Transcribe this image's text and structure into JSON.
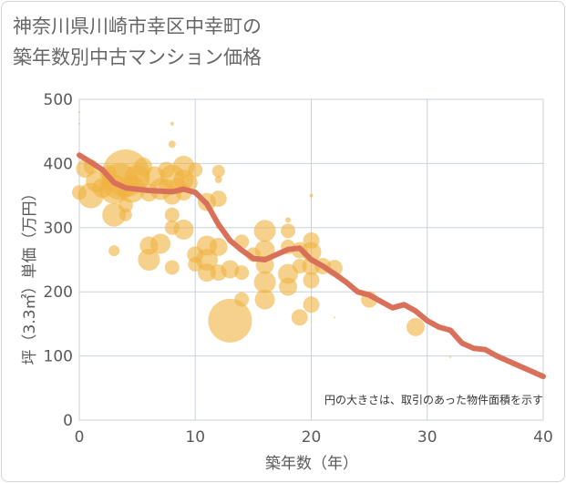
{
  "title_line1": "神奈川県川崎市幸区中幸町の",
  "title_line2": "築年数別中古マンション価格",
  "note": "円の大きさは、取引のあった物件面積を示す",
  "colors": {
    "bubble": "#f0b240",
    "line": "#d9705a",
    "grid": "#c8d2dc",
    "text": "#5a5a5a"
  },
  "chart_data": {
    "type": "scatter",
    "xlabel": "築年数（年）",
    "ylabel": "坪（3.3㎡）単価（万円）",
    "xlim": [
      0,
      40
    ],
    "ylim": [
      0,
      500
    ],
    "x_ticks": [
      "0",
      "10",
      "20",
      "30",
      "40"
    ],
    "y_ticks": [
      "0",
      "100",
      "200",
      "300",
      "400",
      "500"
    ],
    "grid": true,
    "bubbles": [
      {
        "x": 0,
        "y": 480,
        "s": 1
      },
      {
        "x": 0,
        "y": 462,
        "s": 1
      },
      {
        "x": 0,
        "y": 355,
        "s": 8
      },
      {
        "x": 0.5,
        "y": 392,
        "s": 10
      },
      {
        "x": 1,
        "y": 350,
        "s": 14
      },
      {
        "x": 1,
        "y": 395,
        "s": 8
      },
      {
        "x": 1.5,
        "y": 372,
        "s": 12
      },
      {
        "x": 2,
        "y": 362,
        "s": 11
      },
      {
        "x": 2.5,
        "y": 385,
        "s": 9
      },
      {
        "x": 3,
        "y": 320,
        "s": 13
      },
      {
        "x": 3,
        "y": 360,
        "s": 16
      },
      {
        "x": 3,
        "y": 264,
        "s": 6
      },
      {
        "x": 3.5,
        "y": 372,
        "s": 20
      },
      {
        "x": 4,
        "y": 385,
        "s": 26
      },
      {
        "x": 4,
        "y": 335,
        "s": 8
      },
      {
        "x": 4,
        "y": 320,
        "s": 7
      },
      {
        "x": 4.5,
        "y": 360,
        "s": 15
      },
      {
        "x": 5,
        "y": 378,
        "s": 14
      },
      {
        "x": 5.5,
        "y": 395,
        "s": 10
      },
      {
        "x": 6,
        "y": 355,
        "s": 10
      },
      {
        "x": 6,
        "y": 250,
        "s": 12
      },
      {
        "x": 6,
        "y": 272,
        "s": 10
      },
      {
        "x": 6.5,
        "y": 380,
        "s": 11
      },
      {
        "x": 7,
        "y": 360,
        "s": 12
      },
      {
        "x": 7,
        "y": 275,
        "s": 11
      },
      {
        "x": 7.5,
        "y": 390,
        "s": 9
      },
      {
        "x": 7.5,
        "y": 365,
        "s": 8
      },
      {
        "x": 8,
        "y": 380,
        "s": 13
      },
      {
        "x": 8,
        "y": 350,
        "s": 10
      },
      {
        "x": 8,
        "y": 320,
        "s": 8
      },
      {
        "x": 8,
        "y": 300,
        "s": 8
      },
      {
        "x": 8,
        "y": 238,
        "s": 8
      },
      {
        "x": 8,
        "y": 462,
        "s": 2
      },
      {
        "x": 8,
        "y": 430,
        "s": 4
      },
      {
        "x": 8.5,
        "y": 365,
        "s": 9
      },
      {
        "x": 9,
        "y": 395,
        "s": 12
      },
      {
        "x": 9,
        "y": 375,
        "s": 11
      },
      {
        "x": 9,
        "y": 355,
        "s": 9
      },
      {
        "x": 9,
        "y": 297,
        "s": 11
      },
      {
        "x": 9.5,
        "y": 370,
        "s": 9
      },
      {
        "x": 10,
        "y": 390,
        "s": 8
      },
      {
        "x": 10,
        "y": 258,
        "s": 9
      },
      {
        "x": 10,
        "y": 243,
        "s": 8
      },
      {
        "x": 11,
        "y": 340,
        "s": 10
      },
      {
        "x": 11,
        "y": 272,
        "s": 11
      },
      {
        "x": 11,
        "y": 250,
        "s": 12
      },
      {
        "x": 11,
        "y": 230,
        "s": 10
      },
      {
        "x": 12,
        "y": 388,
        "s": 7
      },
      {
        "x": 12,
        "y": 375,
        "s": 4
      },
      {
        "x": 12,
        "y": 345,
        "s": 9
      },
      {
        "x": 12,
        "y": 270,
        "s": 10
      },
      {
        "x": 12,
        "y": 230,
        "s": 9
      },
      {
        "x": 12,
        "y": 302,
        "s": 3
      },
      {
        "x": 13,
        "y": 155,
        "s": 24
      },
      {
        "x": 13,
        "y": 235,
        "s": 10
      },
      {
        "x": 14,
        "y": 278,
        "s": 8
      },
      {
        "x": 14,
        "y": 230,
        "s": 8
      },
      {
        "x": 14,
        "y": 188,
        "s": 8
      },
      {
        "x": 15,
        "y": 258,
        "s": 8
      },
      {
        "x": 16,
        "y": 295,
        "s": 12
      },
      {
        "x": 16,
        "y": 265,
        "s": 11
      },
      {
        "x": 16,
        "y": 242,
        "s": 10
      },
      {
        "x": 16,
        "y": 215,
        "s": 12
      },
      {
        "x": 16,
        "y": 188,
        "s": 11
      },
      {
        "x": 18,
        "y": 295,
        "s": 8
      },
      {
        "x": 18,
        "y": 270,
        "s": 8
      },
      {
        "x": 18,
        "y": 228,
        "s": 11
      },
      {
        "x": 18,
        "y": 208,
        "s": 10
      },
      {
        "x": 18,
        "y": 312,
        "s": 3
      },
      {
        "x": 19,
        "y": 265,
        "s": 9
      },
      {
        "x": 19,
        "y": 240,
        "s": 8
      },
      {
        "x": 19,
        "y": 160,
        "s": 9
      },
      {
        "x": 20,
        "y": 350,
        "s": 2
      },
      {
        "x": 20,
        "y": 280,
        "s": 9
      },
      {
        "x": 20,
        "y": 262,
        "s": 11
      },
      {
        "x": 20,
        "y": 240,
        "s": 10
      },
      {
        "x": 20,
        "y": 218,
        "s": 9
      },
      {
        "x": 20,
        "y": 180,
        "s": 9
      },
      {
        "x": 21,
        "y": 240,
        "s": 9
      },
      {
        "x": 22,
        "y": 237,
        "s": 9
      },
      {
        "x": 22,
        "y": 160,
        "s": 1
      },
      {
        "x": 25,
        "y": 188,
        "s": 9
      },
      {
        "x": 29,
        "y": 145,
        "s": 10
      },
      {
        "x": 32,
        "y": 98,
        "s": 1
      }
    ],
    "trend": {
      "x": [
        0,
        1,
        2,
        3,
        4,
        5,
        6,
        7,
        8,
        9,
        10,
        11,
        12,
        13,
        14,
        15,
        16,
        17,
        18,
        19,
        20,
        21,
        22,
        23,
        24,
        25,
        26,
        27,
        28,
        29,
        30,
        31,
        32,
        33,
        34,
        35,
        36,
        37,
        38,
        39,
        40
      ],
      "y": [
        413,
        402,
        390,
        370,
        362,
        360,
        358,
        357,
        356,
        360,
        355,
        337,
        305,
        280,
        265,
        252,
        250,
        258,
        266,
        268,
        250,
        240,
        228,
        215,
        200,
        195,
        185,
        175,
        180,
        170,
        155,
        145,
        140,
        120,
        112,
        110,
        100,
        92,
        84,
        76,
        68
      ]
    }
  }
}
